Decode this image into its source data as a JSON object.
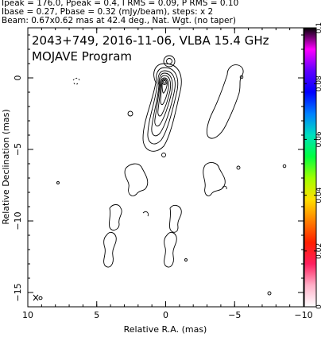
{
  "header": {
    "line1": "Ipeak = 176.0, Ppeak = 0.4, I RMS = 0.09, P RMS = 0.10",
    "line2": "Ibase = 0.27, Pbase = 0.32 (mJy/beam), steps: x 2",
    "line3": "Beam: 0.67x0.62 mas at 42.4 deg., Nat. Wgt. (no taper)"
  },
  "chart_data": {
    "type": "contour",
    "title": "2043+749, 2016-11-06, VLBA 15.4 GHz",
    "subtitle": "MOJAVE Program",
    "xlabel": "Relative R.A. (mas)",
    "ylabel": "Relative Declination (mas)",
    "xlim": [
      10,
      -10
    ],
    "ylim": [
      -16,
      3.5
    ],
    "x_ticks": [
      10,
      5,
      0,
      -5,
      -10
    ],
    "y_ticks": [
      0,
      -5,
      -10,
      -15
    ],
    "tick_labels_x": [
      "10",
      "5",
      "0",
      "−5",
      "−10"
    ],
    "tick_labels_y": [
      "0",
      "−5",
      "−10",
      "−15"
    ],
    "colorbar": {
      "min": 0,
      "max": 0.1,
      "ticks": [
        0,
        0.02,
        0.04,
        0.06,
        0.08,
        0.1
      ],
      "tick_labels": [
        "0",
        "0.02",
        "0.04",
        "0.06",
        "0.08",
        "0.1"
      ],
      "colors": [
        "#ffffff",
        "#ffb0c8",
        "#ff2060",
        "#ff2000",
        "#ff8000",
        "#ffe000",
        "#a0ff00",
        "#00ff40",
        "#00e0c0",
        "#0080ff",
        "#0000ff",
        "#6000ff",
        "#ff00ff",
        "#000000"
      ]
    },
    "beam": {
      "major_mas": 0.67,
      "minor_mas": 0.62,
      "pa_deg": 42.4
    },
    "contour_steps": "x 2",
    "panels": [
      "total intensity",
      "polarized intensity"
    ]
  }
}
